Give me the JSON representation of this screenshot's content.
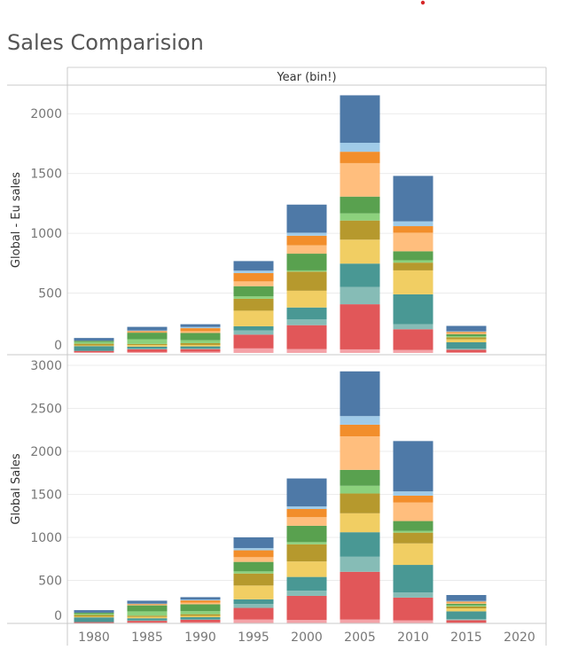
{
  "title": "Sales Comparision",
  "accent_dot_color": "#d62728",
  "chart_data": [
    {
      "type": "bar",
      "stacked": true,
      "column_header": "Year (bin!)",
      "ylabel": "Global - Eu sales",
      "categories": [
        "1980",
        "1985",
        "1990",
        "1995",
        "2000",
        "2005",
        "2010",
        "2015",
        "2020"
      ],
      "ylim": [
        0,
        2150
      ],
      "yticks": [
        0,
        500,
        1000,
        1500,
        2000
      ],
      "grid": true,
      "series": [
        {
          "color": "#f4a3a8",
          "values": [
            5,
            8,
            10,
            38,
            32,
            30,
            25,
            5,
            0
          ]
        },
        {
          "color": "#e15759",
          "values": [
            12,
            22,
            22,
            115,
            200,
            377,
            173,
            22,
            0
          ]
        },
        {
          "color": "#86bcb6",
          "values": [
            0,
            5,
            5,
            35,
            48,
            145,
            42,
            10,
            0
          ]
        },
        {
          "color": "#499894",
          "values": [
            40,
            18,
            18,
            35,
            100,
            195,
            250,
            52,
            0
          ]
        },
        {
          "color": "#f1ce63",
          "values": [
            5,
            12,
            12,
            130,
            140,
            200,
            200,
            25,
            0
          ]
        },
        {
          "color": "#b6992d",
          "values": [
            15,
            10,
            15,
            100,
            160,
            160,
            65,
            17,
            0
          ]
        },
        {
          "color": "#8cd17d",
          "values": [
            15,
            40,
            25,
            20,
            10,
            60,
            20,
            10,
            0
          ]
        },
        {
          "color": "#59a14f",
          "values": [
            10,
            55,
            60,
            85,
            140,
            140,
            75,
            15,
            0
          ]
        },
        {
          "color": "#ffbe7d",
          "values": [
            0,
            3,
            15,
            40,
            70,
            280,
            155,
            10,
            0
          ]
        },
        {
          "color": "#f28e2b",
          "values": [
            0,
            10,
            25,
            70,
            80,
            95,
            55,
            10,
            0
          ]
        },
        {
          "color": "#a0cbe8",
          "values": [
            0,
            5,
            10,
            20,
            25,
            75,
            40,
            5,
            0
          ]
        },
        {
          "color": "#4e79a7",
          "values": [
            23,
            30,
            23,
            80,
            235,
            397,
            380,
            45,
            0
          ]
        }
      ]
    },
    {
      "type": "bar",
      "stacked": true,
      "ylabel": "Global Sales",
      "categories": [
        "1980",
        "1985",
        "1990",
        "1995",
        "2000",
        "2005",
        "2010",
        "2015",
        "2020"
      ],
      "ylim": [
        0,
        3000
      ],
      "yticks": [
        0,
        500,
        1000,
        1500,
        2000,
        2500,
        3000
      ],
      "grid": true,
      "series": [
        {
          "color": "#f4a3a8",
          "values": [
            5,
            10,
            12,
            45,
            40,
            45,
            35,
            8,
            0
          ]
        },
        {
          "color": "#e15759",
          "values": [
            10,
            20,
            30,
            135,
            280,
            555,
            265,
            30,
            0
          ]
        },
        {
          "color": "#86bcb6",
          "values": [
            0,
            5,
            5,
            45,
            60,
            175,
            60,
            12,
            0
          ]
        },
        {
          "color": "#499894",
          "values": [
            55,
            25,
            25,
            55,
            160,
            285,
            320,
            90,
            0
          ]
        },
        {
          "color": "#f1ce63",
          "values": [
            8,
            15,
            15,
            160,
            180,
            220,
            250,
            35,
            0
          ]
        },
        {
          "color": "#b6992d",
          "values": [
            20,
            15,
            20,
            140,
            200,
            230,
            125,
            22,
            0
          ]
        },
        {
          "color": "#8cd17d",
          "values": [
            15,
            50,
            35,
            25,
            25,
            90,
            20,
            12,
            0
          ]
        },
        {
          "color": "#59a14f",
          "values": [
            12,
            70,
            80,
            110,
            190,
            185,
            115,
            20,
            0
          ]
        },
        {
          "color": "#ffbe7d",
          "values": [
            0,
            5,
            20,
            55,
            100,
            390,
            215,
            12,
            0
          ]
        },
        {
          "color": "#f28e2b",
          "values": [
            0,
            10,
            25,
            80,
            95,
            135,
            80,
            12,
            0
          ]
        },
        {
          "color": "#a0cbe8",
          "values": [
            0,
            5,
            10,
            25,
            30,
            100,
            50,
            8,
            0
          ]
        },
        {
          "color": "#4e79a7",
          "values": [
            29,
            34,
            28,
            125,
            325,
            520,
            585,
            69,
            0
          ]
        }
      ]
    }
  ]
}
